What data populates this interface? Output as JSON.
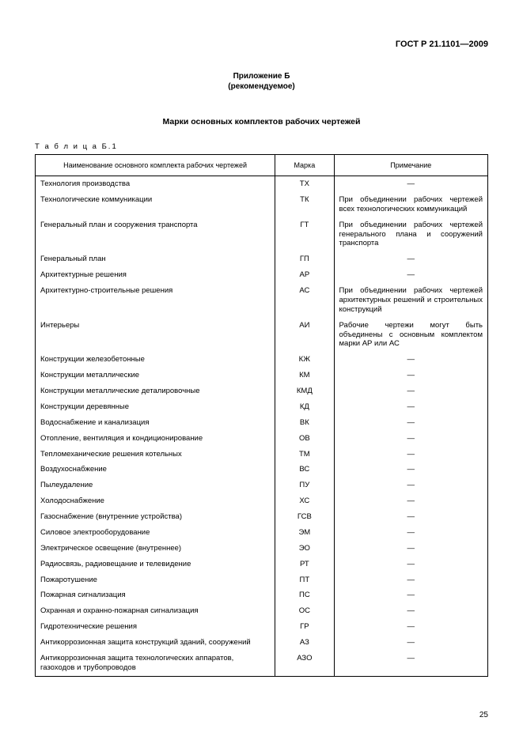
{
  "header": "ГОСТ Р 21.1101—2009",
  "appendix": {
    "title": "Приложение Б",
    "subtitle": "(рекомендуемое)"
  },
  "main_title": "Марки основных комплектов рабочих чертежей",
  "table_label": "Т а б л и ц а  Б.1",
  "columns": {
    "name": "Наименование основного комплекта рабочих чертежей",
    "mark": "Марка",
    "note": "Примечание"
  },
  "rows": [
    {
      "name": "Технология производства",
      "mark": "ТХ",
      "note": "—"
    },
    {
      "name": "Технологические коммуникации",
      "mark": "ТК",
      "note": "При объединении рабочих чертежей всех технологических коммуникаций"
    },
    {
      "name": "Генеральный план и сооружения транспорта",
      "mark": "ГТ",
      "note": "При объединении рабочих чертежей генерального плана и сооружений транспорта"
    },
    {
      "name": "Генеральный план",
      "mark": "ГП",
      "note": "—"
    },
    {
      "name": "Архитектурные решения",
      "mark": "АР",
      "note": "—"
    },
    {
      "name": "Архитектурно-строительные решения",
      "mark": "АС",
      "note": "При объединении рабочих чертежей архитектурных решений и строительных конструкций"
    },
    {
      "name": "Интерьеры",
      "mark": "АИ",
      "note": "Рабочие чертежи могут быть объединены с основным комплектом марки АР или АС"
    },
    {
      "name": "Конструкции железобетонные",
      "mark": "КЖ",
      "note": "—"
    },
    {
      "name": "Конструкции металлические",
      "mark": "КМ",
      "note": "—"
    },
    {
      "name": "Конструкции металлические деталировочные",
      "mark": "КМД",
      "note": "—"
    },
    {
      "name": "Конструкции деревянные",
      "mark": "КД",
      "note": "—"
    },
    {
      "name": "Водоснабжение и канализация",
      "mark": "ВК",
      "note": "—"
    },
    {
      "name": "Отопление, вентиляция и кондиционирование",
      "mark": "ОВ",
      "note": "—"
    },
    {
      "name": "Тепломеханические решения котельных",
      "mark": "ТМ",
      "note": "—"
    },
    {
      "name": "Воздухоснабжение",
      "mark": "ВС",
      "note": "—"
    },
    {
      "name": "Пылеудаление",
      "mark": "ПУ",
      "note": "—"
    },
    {
      "name": "Холодоснабжение",
      "mark": "ХС",
      "note": "—"
    },
    {
      "name": "Газоснабжение (внутренние устройства)",
      "mark": "ГСВ",
      "note": "—"
    },
    {
      "name": "Силовое электрооборудование",
      "mark": "ЭМ",
      "note": "—"
    },
    {
      "name": "Электрическое освещение (внутреннее)",
      "mark": "ЭО",
      "note": "—"
    },
    {
      "name": "Радиосвязь, радиовещание и телевидение",
      "mark": "РТ",
      "note": "—"
    },
    {
      "name": "Пожаротушение",
      "mark": "ПТ",
      "note": "—"
    },
    {
      "name": "Пожарная сигнализация",
      "mark": "ПС",
      "note": "—"
    },
    {
      "name": "Охранная и охранно-пожарная сигнализация",
      "mark": "ОС",
      "note": "—"
    },
    {
      "name": "Гидротехнические решения",
      "mark": "ГР",
      "note": "—"
    },
    {
      "name": "Антикоррозионная защита конструкций зданий, сооружений",
      "mark": "АЗ",
      "note": "—"
    },
    {
      "name": "Антикоррозионная защита технологических аппаратов, газоходов и трубопроводов",
      "mark": "АЗО",
      "note": "—"
    }
  ],
  "page_number": "25"
}
